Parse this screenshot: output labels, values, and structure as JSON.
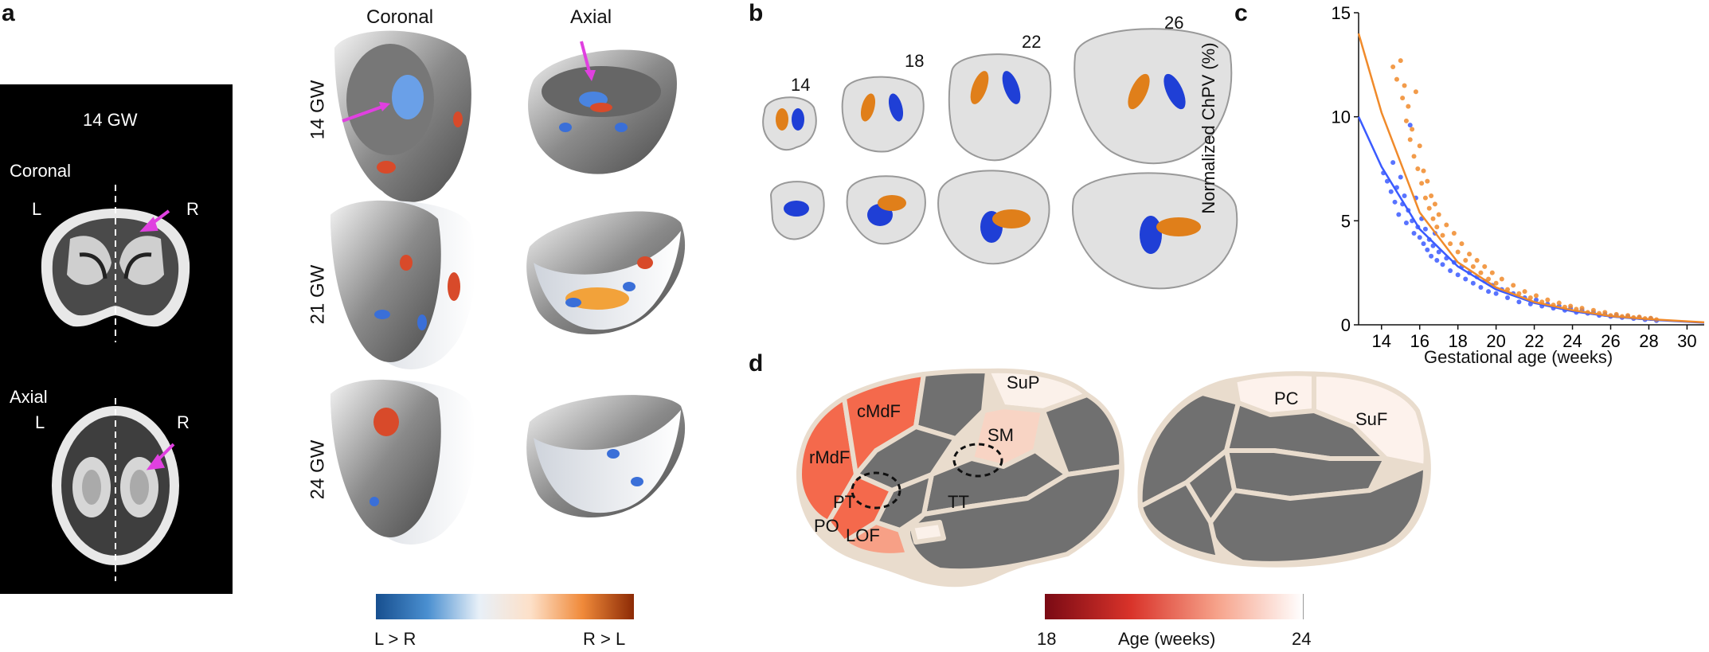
{
  "panels": {
    "a": {
      "letter": "a",
      "mri_title": "14 GW",
      "coronal_label": "Coronal",
      "axial_label": "Axial",
      "left_label": "L",
      "right_label": "R",
      "col_headers": [
        "Coronal",
        "Axial"
      ],
      "row_labels": [
        "14 GW",
        "21 GW",
        "24 GW"
      ],
      "colorbar": {
        "left": "L > R",
        "right": "R > L",
        "colors": [
          "#174f8f",
          "#4a8fd0",
          "#e8f0f8",
          "#fde0c8",
          "#f08a3a",
          "#8c2a05"
        ]
      }
    },
    "b": {
      "letter": "b",
      "ages": [
        "14",
        "18",
        "22",
        "26"
      ],
      "colors": {
        "left_chp": "#1f3fd6",
        "right_chp": "#e07f1a"
      }
    },
    "c": {
      "letter": "c"
    },
    "d": {
      "letter": "d",
      "lateral_regions": [
        "SuP",
        "cMdF",
        "rMdF",
        "SM",
        "PT",
        "TT",
        "PO",
        "LOF"
      ],
      "medial_regions": [
        "PC",
        "SuF"
      ],
      "colorbar": {
        "min": "18",
        "max": "24",
        "label": "Age (weeks)",
        "colors": [
          "#7a0a14",
          "#d9332a",
          "#f6a28a",
          "#ffffff"
        ]
      }
    }
  },
  "chart_data": {
    "type": "scatter",
    "xlabel": "Gestational age (weeks)",
    "ylabel": "Normalized ChPV (%)",
    "xlim": [
      12.8,
      30.9
    ],
    "ylim": [
      0,
      15
    ],
    "xticks": [
      14,
      16,
      18,
      20,
      22,
      24,
      26,
      28,
      30
    ],
    "yticks": [
      0,
      5,
      10,
      15
    ],
    "series": [
      {
        "color": "#3b5bff",
        "curve": {
          "x": [
            12.8,
            14,
            16,
            18,
            20,
            22,
            24,
            26,
            28,
            30.9
          ],
          "y": [
            10.0,
            7.6,
            4.6,
            2.8,
            1.7,
            1.05,
            0.65,
            0.4,
            0.25,
            0.1
          ]
        },
        "points": [
          [
            14.1,
            7.3
          ],
          [
            14.3,
            6.9
          ],
          [
            14.5,
            6.4
          ],
          [
            14.6,
            7.8
          ],
          [
            14.7,
            5.9
          ],
          [
            14.8,
            6.6
          ],
          [
            14.9,
            5.3
          ],
          [
            15.0,
            7.1
          ],
          [
            15.1,
            5.8
          ],
          [
            15.2,
            6.2
          ],
          [
            15.3,
            4.9
          ],
          [
            15.4,
            5.5
          ],
          [
            15.5,
            9.6
          ],
          [
            15.6,
            5.0
          ],
          [
            15.7,
            4.4
          ],
          [
            15.8,
            6.1
          ],
          [
            15.9,
            4.7
          ],
          [
            16.0,
            4.2
          ],
          [
            16.1,
            5.1
          ],
          [
            16.2,
            3.9
          ],
          [
            16.3,
            4.6
          ],
          [
            16.4,
            3.6
          ],
          [
            16.5,
            4.1
          ],
          [
            16.6,
            3.3
          ],
          [
            16.7,
            3.8
          ],
          [
            16.8,
            4.4
          ],
          [
            16.9,
            3.1
          ],
          [
            17.0,
            3.5
          ],
          [
            17.2,
            2.9
          ],
          [
            17.4,
            3.2
          ],
          [
            17.6,
            2.6
          ],
          [
            17.8,
            3.0
          ],
          [
            18.0,
            2.4
          ],
          [
            18.2,
            2.8
          ],
          [
            18.4,
            2.2
          ],
          [
            18.6,
            2.5
          ],
          [
            18.8,
            2.0
          ],
          [
            19.0,
            2.3
          ],
          [
            19.2,
            1.8
          ],
          [
            19.4,
            2.1
          ],
          [
            19.6,
            1.6
          ],
          [
            19.8,
            1.9
          ],
          [
            20.0,
            1.5
          ],
          [
            20.3,
            1.7
          ],
          [
            20.6,
            1.3
          ],
          [
            20.9,
            1.5
          ],
          [
            21.2,
            1.1
          ],
          [
            21.5,
            1.3
          ],
          [
            21.8,
            1.0
          ],
          [
            22.1,
            1.2
          ],
          [
            22.4,
            0.9
          ],
          [
            22.7,
            1.0
          ],
          [
            23.0,
            0.8
          ],
          [
            23.3,
            0.9
          ],
          [
            23.6,
            0.7
          ],
          [
            23.9,
            0.8
          ],
          [
            24.2,
            0.6
          ],
          [
            24.5,
            0.7
          ],
          [
            24.8,
            0.55
          ],
          [
            25.1,
            0.6
          ],
          [
            25.4,
            0.45
          ],
          [
            25.7,
            0.5
          ],
          [
            26.0,
            0.4
          ],
          [
            26.3,
            0.45
          ],
          [
            26.6,
            0.35
          ],
          [
            26.9,
            0.4
          ],
          [
            27.2,
            0.3
          ],
          [
            27.5,
            0.35
          ],
          [
            27.8,
            0.25
          ],
          [
            28.1,
            0.3
          ],
          [
            28.4,
            0.2
          ]
        ]
      },
      {
        "color": "#f08a2a",
        "curve": {
          "x": [
            12.8,
            14,
            16,
            18,
            20,
            22,
            24,
            26,
            28,
            30.9
          ],
          "y": [
            14.0,
            10.2,
            5.4,
            3.0,
            1.8,
            1.1,
            0.7,
            0.42,
            0.27,
            0.12
          ]
        },
        "points": [
          [
            14.6,
            12.4
          ],
          [
            14.8,
            11.8
          ],
          [
            15.0,
            12.7
          ],
          [
            15.1,
            10.9
          ],
          [
            15.2,
            11.5
          ],
          [
            15.3,
            9.8
          ],
          [
            15.4,
            10.5
          ],
          [
            15.5,
            8.9
          ],
          [
            15.6,
            9.4
          ],
          [
            15.7,
            8.1
          ],
          [
            15.8,
            11.2
          ],
          [
            15.9,
            7.5
          ],
          [
            16.0,
            8.6
          ],
          [
            16.1,
            6.8
          ],
          [
            16.2,
            7.4
          ],
          [
            16.3,
            6.1
          ],
          [
            16.4,
            6.9
          ],
          [
            16.5,
            5.6
          ],
          [
            16.6,
            6.2
          ],
          [
            16.7,
            5.1
          ],
          [
            16.8,
            5.8
          ],
          [
            16.9,
            4.7
          ],
          [
            17.0,
            5.3
          ],
          [
            17.2,
            4.3
          ],
          [
            17.4,
            4.8
          ],
          [
            17.6,
            3.9
          ],
          [
            17.8,
            4.4
          ],
          [
            18.0,
            3.5
          ],
          [
            18.2,
            3.9
          ],
          [
            18.4,
            3.1
          ],
          [
            18.6,
            3.4
          ],
          [
            18.8,
            2.8
          ],
          [
            19.0,
            3.1
          ],
          [
            19.2,
            2.5
          ],
          [
            19.4,
            2.8
          ],
          [
            19.6,
            2.2
          ],
          [
            19.8,
            2.5
          ],
          [
            20.0,
            2.0
          ],
          [
            20.3,
            2.2
          ],
          [
            20.6,
            1.7
          ],
          [
            20.9,
            1.9
          ],
          [
            21.2,
            1.5
          ],
          [
            21.5,
            1.6
          ],
          [
            21.8,
            1.3
          ],
          [
            22.1,
            1.4
          ],
          [
            22.4,
            1.1
          ],
          [
            22.7,
            1.2
          ],
          [
            23.0,
            0.95
          ],
          [
            23.3,
            1.05
          ],
          [
            23.6,
            0.85
          ],
          [
            23.9,
            0.9
          ],
          [
            24.2,
            0.75
          ],
          [
            24.5,
            0.8
          ],
          [
            24.8,
            0.6
          ],
          [
            25.1,
            0.7
          ],
          [
            25.4,
            0.55
          ],
          [
            25.7,
            0.6
          ],
          [
            26.0,
            0.45
          ],
          [
            26.3,
            0.5
          ],
          [
            26.6,
            0.4
          ],
          [
            26.9,
            0.45
          ],
          [
            27.2,
            0.35
          ],
          [
            27.5,
            0.38
          ],
          [
            27.8,
            0.3
          ],
          [
            28.1,
            0.32
          ],
          [
            28.4,
            0.25
          ]
        ]
      }
    ]
  }
}
